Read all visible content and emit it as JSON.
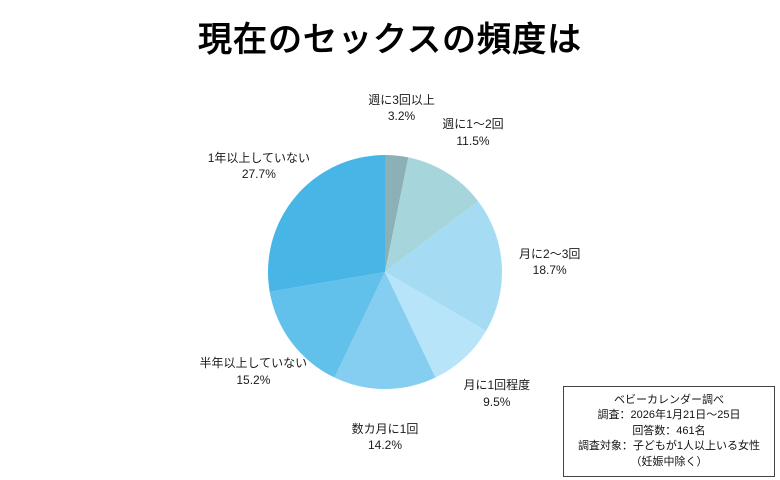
{
  "title": "現在のセックスの頻度は",
  "chart_data": {
    "type": "pie",
    "title": "現在のセックスの頻度は",
    "start_angle_deg": 0,
    "direction": "clockwise",
    "labels": [
      "週に3回以上",
      "週に1〜2回",
      "月に2〜3回",
      "月に1回程度",
      "数カ月に1回",
      "半年以上していない",
      "1年以上していない"
    ],
    "values": [
      3.2,
      11.5,
      18.7,
      9.5,
      14.2,
      15.2,
      27.7
    ],
    "value_labels": [
      "3.2%",
      "11.5%",
      "18.7%",
      "9.5%",
      "14.2%",
      "15.2%",
      "27.7%"
    ],
    "colors": [
      "#8CB0B6",
      "#A6D6DC",
      "#A5DCF4",
      "#B7E4F9",
      "#85CEF2",
      "#62C1EA",
      "#47B5E5"
    ],
    "unit": "%",
    "legend": "none",
    "label_position": "outside"
  },
  "note_box": {
    "lines": [
      "ベビーカレンダー調べ",
      "調査：2026年1月21日〜25日",
      "回答数：461名",
      "調査対象：子どもが1人以上いる女性",
      "（妊娠中除く）"
    ]
  }
}
